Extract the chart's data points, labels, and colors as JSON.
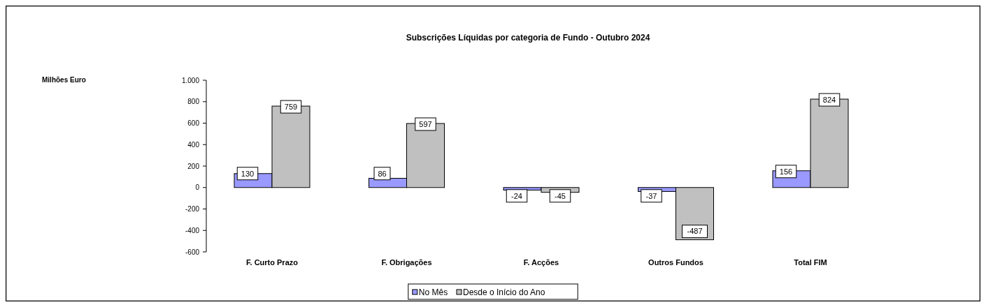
{
  "chart_data": {
    "type": "bar",
    "title": "Subscrições Líquidas por categoria de Fundo - Outubro 2024",
    "annotations": [
      "Milhões Euro"
    ],
    "categories": [
      "F. Curto Prazo",
      "F. Obrigações",
      "F. Acções",
      "Outros Fundos",
      "Total FIM"
    ],
    "series": [
      {
        "name": "No Mês",
        "color": "#9999ff",
        "values": [
          130,
          86,
          -24,
          -37,
          156
        ]
      },
      {
        "name": "Desde o Início do Ano",
        "color": "#c0c0c0",
        "values": [
          759,
          597,
          -45,
          -487,
          824
        ]
      }
    ],
    "ylim": [
      -600,
      1000
    ],
    "yticks": [
      -600,
      -400,
      -200,
      0,
      200,
      400,
      600,
      800,
      {
        "value": 1000,
        "label": "1.000"
      }
    ],
    "data_labels": true,
    "legend": "bottom",
    "grid": false
  }
}
